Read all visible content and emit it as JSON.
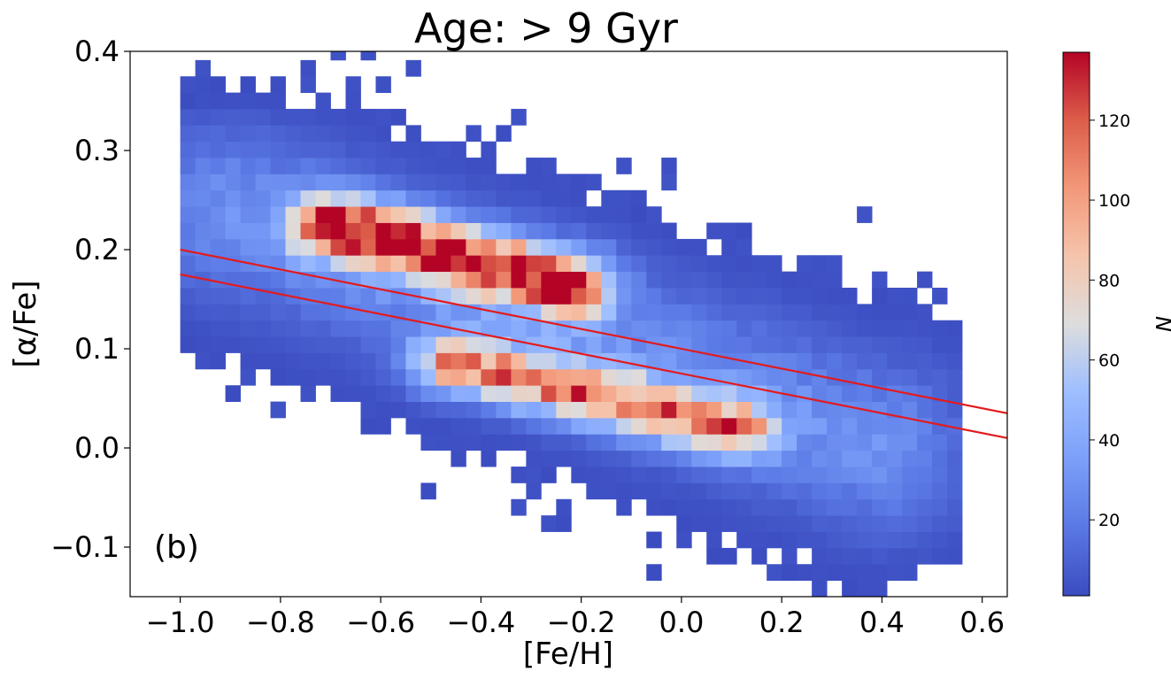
{
  "chart_data": {
    "type": "heatmap",
    "title": "Age: > 9 Gyr",
    "xlabel": "[Fe/H]",
    "ylabel": "[α/Fe]",
    "panel_label": "(b)",
    "xlim": [
      -1.1,
      0.65
    ],
    "ylim": [
      -0.15,
      0.4
    ],
    "xticks": [
      -1.0,
      -0.8,
      -0.6,
      -0.4,
      -0.2,
      0.0,
      0.2,
      0.4,
      0.6
    ],
    "xtick_labels": [
      "−1.0",
      "−0.8",
      "−0.6",
      "−0.4",
      "−0.2",
      "0.0",
      "0.2",
      "0.4",
      "0.6"
    ],
    "yticks": [
      -0.1,
      0.0,
      0.1,
      0.2,
      0.3,
      0.4
    ],
    "ytick_labels": [
      "−0.1",
      "0.0",
      "0.1",
      "0.2",
      "0.3",
      "0.4"
    ],
    "colorbar": {
      "label": "N",
      "vmin": 1,
      "vmax": 137,
      "ticks": [
        20,
        40,
        60,
        80,
        100,
        120
      ],
      "tick_labels": [
        "20",
        "40",
        "60",
        "80",
        "100",
        "120"
      ],
      "colormap": "coolwarm"
    },
    "bins": {
      "x_start": -1.0,
      "x_step": 0.03,
      "y_start": -0.15,
      "y_step": 0.0164,
      "nx": 52,
      "ny": 34,
      "description": "2D histogram counts per bin; main ridge from ([Fe/H]=-0.7,[a/Fe]=0.22) to (-0.3,0.17), secondary ridge from (-0.5,0.07) to (0.1,0.02); peak N~137 near (-0.55,0.2)"
    },
    "density_components": [
      {
        "name": "high-alpha sequence",
        "x0": -0.7,
        "y0": 0.225,
        "x1": -0.22,
        "y1": 0.165,
        "amp": 125,
        "sx": 0.055,
        "sy": 0.022
      },
      {
        "name": "low-alpha sequence",
        "x0": -0.45,
        "y0": 0.085,
        "x1": 0.1,
        "y1": 0.02,
        "amp": 95,
        "sx": 0.06,
        "sy": 0.02
      },
      {
        "name": "extended halo",
        "x0": -0.9,
        "y0": 0.24,
        "x1": 0.4,
        "y1": 0.0,
        "amp": 28,
        "sx": 0.12,
        "sy": 0.06
      }
    ],
    "lines": [
      {
        "name": "upper dividing line",
        "color": "#e41a1c",
        "x": [
          -1.0,
          0.65
        ],
        "y": [
          0.2,
          0.035
        ]
      },
      {
        "name": "lower dividing line",
        "color": "#e41a1c",
        "x": [
          -1.0,
          0.65
        ],
        "y": [
          0.175,
          0.01
        ]
      }
    ]
  }
}
